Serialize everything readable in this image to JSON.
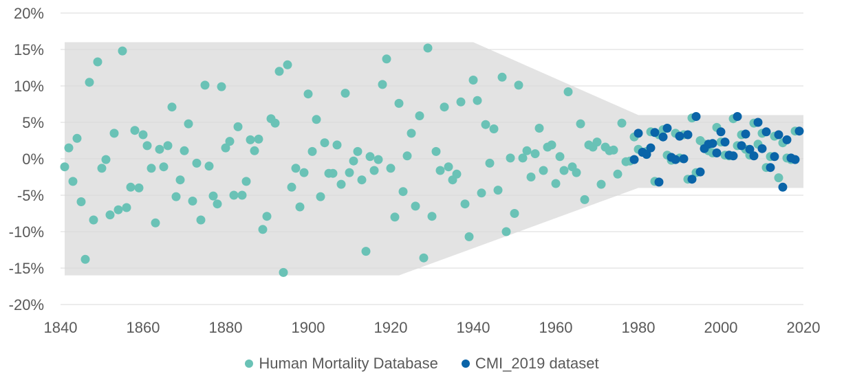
{
  "colors": {
    "series_hmd": "#6ac2b6",
    "series_cmi": "#0a64a8",
    "band": "#e3e3e3",
    "grid": "#d9d9d9",
    "text": "#595959"
  },
  "legend": [
    {
      "label": "Human Mortality Database",
      "color": "#6ac2b6"
    },
    {
      "label": "CMI_2019 dataset",
      "color": "#0a64a8"
    }
  ],
  "chart_data": {
    "type": "scatter",
    "title": "",
    "xlabel": "",
    "ylabel": "",
    "xlim": [
      1840,
      2020
    ],
    "ylim": [
      -0.2,
      0.2
    ],
    "x_ticks": [
      "1840",
      "1860",
      "1880",
      "1900",
      "1920",
      "1940",
      "1960",
      "1980",
      "2000",
      "2020"
    ],
    "y_ticks": [
      "20%",
      "15%",
      "10%",
      "5%",
      "0%",
      "-5%",
      "-10%",
      "-15%",
      "-20%"
    ],
    "y_tick_values": [
      0.2,
      0.15,
      0.1,
      0.05,
      0.0,
      -0.05,
      -0.1,
      -0.15,
      -0.2
    ],
    "x_tick_values": [
      1840,
      1860,
      1880,
      1900,
      1920,
      1940,
      1960,
      1980,
      2000,
      2020
    ],
    "grid": "horizontal",
    "legend_position": "bottom",
    "band": {
      "upper": [
        [
          1841,
          0.16
        ],
        [
          1940,
          0.16
        ],
        [
          1980,
          0.06
        ],
        [
          2020,
          0.06
        ]
      ],
      "lower": [
        [
          1841,
          -0.16
        ],
        [
          1922,
          -0.16
        ],
        [
          1980,
          -0.04
        ],
        [
          2020,
          -0.04
        ]
      ]
    },
    "series": [
      {
        "name": "Human Mortality Database",
        "color": "#6ac2b6",
        "points": [
          [
            1841,
            -0.011
          ],
          [
            1842,
            0.015
          ],
          [
            1843,
            -0.031
          ],
          [
            1844,
            0.028
          ],
          [
            1845,
            -0.059
          ],
          [
            1846,
            -0.138
          ],
          [
            1847,
            0.105
          ],
          [
            1848,
            -0.084
          ],
          [
            1849,
            0.133
          ],
          [
            1850,
            -0.013
          ],
          [
            1851,
            -0.001
          ],
          [
            1852,
            -0.077
          ],
          [
            1853,
            0.035
          ],
          [
            1854,
            -0.07
          ],
          [
            1855,
            0.148
          ],
          [
            1856,
            -0.067
          ],
          [
            1857,
            -0.039
          ],
          [
            1858,
            0.039
          ],
          [
            1859,
            -0.04
          ],
          [
            1860,
            0.033
          ],
          [
            1861,
            0.018
          ],
          [
            1862,
            -0.013
          ],
          [
            1863,
            -0.088
          ],
          [
            1864,
            0.013
          ],
          [
            1865,
            -0.011
          ],
          [
            1866,
            0.018
          ],
          [
            1867,
            0.071
          ],
          [
            1868,
            -0.052
          ],
          [
            1869,
            -0.029
          ],
          [
            1870,
            0.011
          ],
          [
            1871,
            0.048
          ],
          [
            1872,
            -0.058
          ],
          [
            1873,
            -0.006
          ],
          [
            1874,
            -0.084
          ],
          [
            1875,
            0.101
          ],
          [
            1876,
            -0.01
          ],
          [
            1877,
            -0.051
          ],
          [
            1878,
            -0.062
          ],
          [
            1879,
            0.099
          ],
          [
            1880,
            0.015
          ],
          [
            1881,
            0.024
          ],
          [
            1882,
            -0.05
          ],
          [
            1883,
            0.044
          ],
          [
            1884,
            -0.05
          ],
          [
            1885,
            -0.031
          ],
          [
            1886,
            0.026
          ],
          [
            1887,
            0.011
          ],
          [
            1888,
            0.027
          ],
          [
            1889,
            -0.097
          ],
          [
            1890,
            -0.079
          ],
          [
            1891,
            0.055
          ],
          [
            1892,
            0.049
          ],
          [
            1893,
            0.12
          ],
          [
            1894,
            -0.156
          ],
          [
            1895,
            0.129
          ],
          [
            1896,
            -0.039
          ],
          [
            1897,
            -0.013
          ],
          [
            1898,
            -0.066
          ],
          [
            1899,
            -0.019
          ],
          [
            1900,
            0.089
          ],
          [
            1901,
            0.01
          ],
          [
            1902,
            0.054
          ],
          [
            1903,
            -0.052
          ],
          [
            1904,
            0.022
          ],
          [
            1905,
            -0.02
          ],
          [
            1906,
            -0.02
          ],
          [
            1907,
            0.019
          ],
          [
            1908,
            -0.035
          ],
          [
            1909,
            0.09
          ],
          [
            1910,
            -0.019
          ],
          [
            1911,
            -0.003
          ],
          [
            1912,
            0.01
          ],
          [
            1913,
            -0.029
          ],
          [
            1914,
            -0.127
          ],
          [
            1915,
            0.003
          ],
          [
            1916,
            -0.016
          ],
          [
            1917,
            -0.001
          ],
          [
            1918,
            0.102
          ],
          [
            1919,
            0.137
          ],
          [
            1920,
            -0.013
          ],
          [
            1921,
            -0.08
          ],
          [
            1922,
            0.076
          ],
          [
            1923,
            -0.045
          ],
          [
            1924,
            0.004
          ],
          [
            1925,
            0.035
          ],
          [
            1926,
            -0.065
          ],
          [
            1927,
            0.059
          ],
          [
            1928,
            -0.136
          ],
          [
            1929,
            0.152
          ],
          [
            1930,
            -0.079
          ],
          [
            1931,
            0.01
          ],
          [
            1932,
            -0.016
          ],
          [
            1933,
            0.071
          ],
          [
            1934,
            -0.011
          ],
          [
            1935,
            -0.029
          ],
          [
            1936,
            -0.021
          ],
          [
            1937,
            0.078
          ],
          [
            1938,
            -0.062
          ],
          [
            1939,
            -0.107
          ],
          [
            1940,
            0.108
          ],
          [
            1941,
            0.08
          ],
          [
            1942,
            -0.047
          ],
          [
            1943,
            0.047
          ],
          [
            1944,
            -0.006
          ],
          [
            1945,
            0.041
          ],
          [
            1946,
            -0.043
          ],
          [
            1947,
            0.112
          ],
          [
            1948,
            -0.1
          ],
          [
            1949,
            0.001
          ],
          [
            1950,
            -0.075
          ],
          [
            1951,
            0.101
          ],
          [
            1952,
            0.001
          ],
          [
            1953,
            0.011
          ],
          [
            1954,
            -0.025
          ],
          [
            1955,
            0.007
          ],
          [
            1956,
            0.042
          ],
          [
            1957,
            -0.016
          ],
          [
            1958,
            0.016
          ],
          [
            1959,
            0.019
          ],
          [
            1960,
            -0.034
          ],
          [
            1961,
            0.003
          ],
          [
            1962,
            -0.016
          ],
          [
            1963,
            0.092
          ],
          [
            1964,
            -0.011
          ],
          [
            1965,
            -0.019
          ],
          [
            1966,
            0.048
          ],
          [
            1967,
            -0.056
          ],
          [
            1968,
            0.019
          ],
          [
            1969,
            0.016
          ],
          [
            1970,
            0.023
          ],
          [
            1971,
            -0.035
          ],
          [
            1972,
            0.016
          ],
          [
            1973,
            0.011
          ],
          [
            1974,
            0.012
          ],
          [
            1975,
            -0.021
          ],
          [
            1976,
            0.049
          ],
          [
            1977,
            -0.004
          ],
          [
            1978,
            -0.003
          ],
          [
            1979,
            0.03
          ],
          [
            1980,
            0.013
          ],
          [
            1981,
            0.009
          ],
          [
            1982,
            0.01
          ],
          [
            1983,
            0.037
          ],
          [
            1984,
            -0.031
          ],
          [
            1985,
            0.033
          ],
          [
            1986,
            0.04
          ],
          [
            1987,
            0.005
          ],
          [
            1988,
            -0.002
          ],
          [
            1989,
            0.035
          ],
          [
            1990,
            0.001
          ],
          [
            1991,
            0.033
          ],
          [
            1992,
            -0.028
          ],
          [
            1993,
            0.056
          ],
          [
            1994,
            -0.019
          ],
          [
            1995,
            0.025
          ],
          [
            1996,
            0.02
          ],
          [
            1997,
            0.011
          ],
          [
            1998,
            0.008
          ],
          [
            1999,
            0.043
          ],
          [
            2000,
            0.023
          ],
          [
            2001,
            0.005
          ],
          [
            2002,
            0.004
          ],
          [
            2003,
            0.055
          ],
          [
            2004,
            0.018
          ],
          [
            2005,
            0.033
          ],
          [
            2006,
            0.013
          ],
          [
            2007,
            0.005
          ],
          [
            2008,
            0.049
          ],
          [
            2009,
            0.02
          ],
          [
            2010,
            0.035
          ],
          [
            2011,
            -0.012
          ],
          [
            2012,
            0.003
          ],
          [
            2013,
            0.031
          ],
          [
            2014,
            -0.026
          ],
          [
            2015,
            0.022
          ],
          [
            2016,
            0.001
          ],
          [
            2017,
            -0.001
          ],
          [
            2018,
            0.038
          ]
        ]
      },
      {
        "name": "CMI_2019 dataset",
        "color": "#0a64a8",
        "points": [
          [
            1979,
            -0.001
          ],
          [
            1980,
            0.035
          ],
          [
            1981,
            0.009
          ],
          [
            1982,
            0.006
          ],
          [
            1983,
            0.015
          ],
          [
            1984,
            0.036
          ],
          [
            1985,
            -0.032
          ],
          [
            1986,
            0.03
          ],
          [
            1987,
            0.042
          ],
          [
            1988,
            0.002
          ],
          [
            1989,
            -0.001
          ],
          [
            1990,
            0.031
          ],
          [
            1991,
            0.0
          ],
          [
            1992,
            0.033
          ],
          [
            1993,
            -0.028
          ],
          [
            1994,
            0.058
          ],
          [
            1995,
            -0.018
          ],
          [
            1996,
            0.014
          ],
          [
            1997,
            0.02
          ],
          [
            1998,
            0.021
          ],
          [
            1999,
            0.008
          ],
          [
            2000,
            0.037
          ],
          [
            2001,
            0.023
          ],
          [
            2002,
            0.005
          ],
          [
            2003,
            0.004
          ],
          [
            2004,
            0.058
          ],
          [
            2005,
            0.018
          ],
          [
            2006,
            0.034
          ],
          [
            2007,
            0.013
          ],
          [
            2008,
            0.004
          ],
          [
            2009,
            0.05
          ],
          [
            2010,
            0.014
          ],
          [
            2011,
            0.037
          ],
          [
            2012,
            -0.012
          ],
          [
            2013,
            0.003
          ],
          [
            2014,
            0.033
          ],
          [
            2015,
            -0.039
          ],
          [
            2016,
            0.026
          ],
          [
            2017,
            0.001
          ],
          [
            2018,
            -0.001
          ],
          [
            2019,
            0.038
          ]
        ]
      }
    ]
  }
}
